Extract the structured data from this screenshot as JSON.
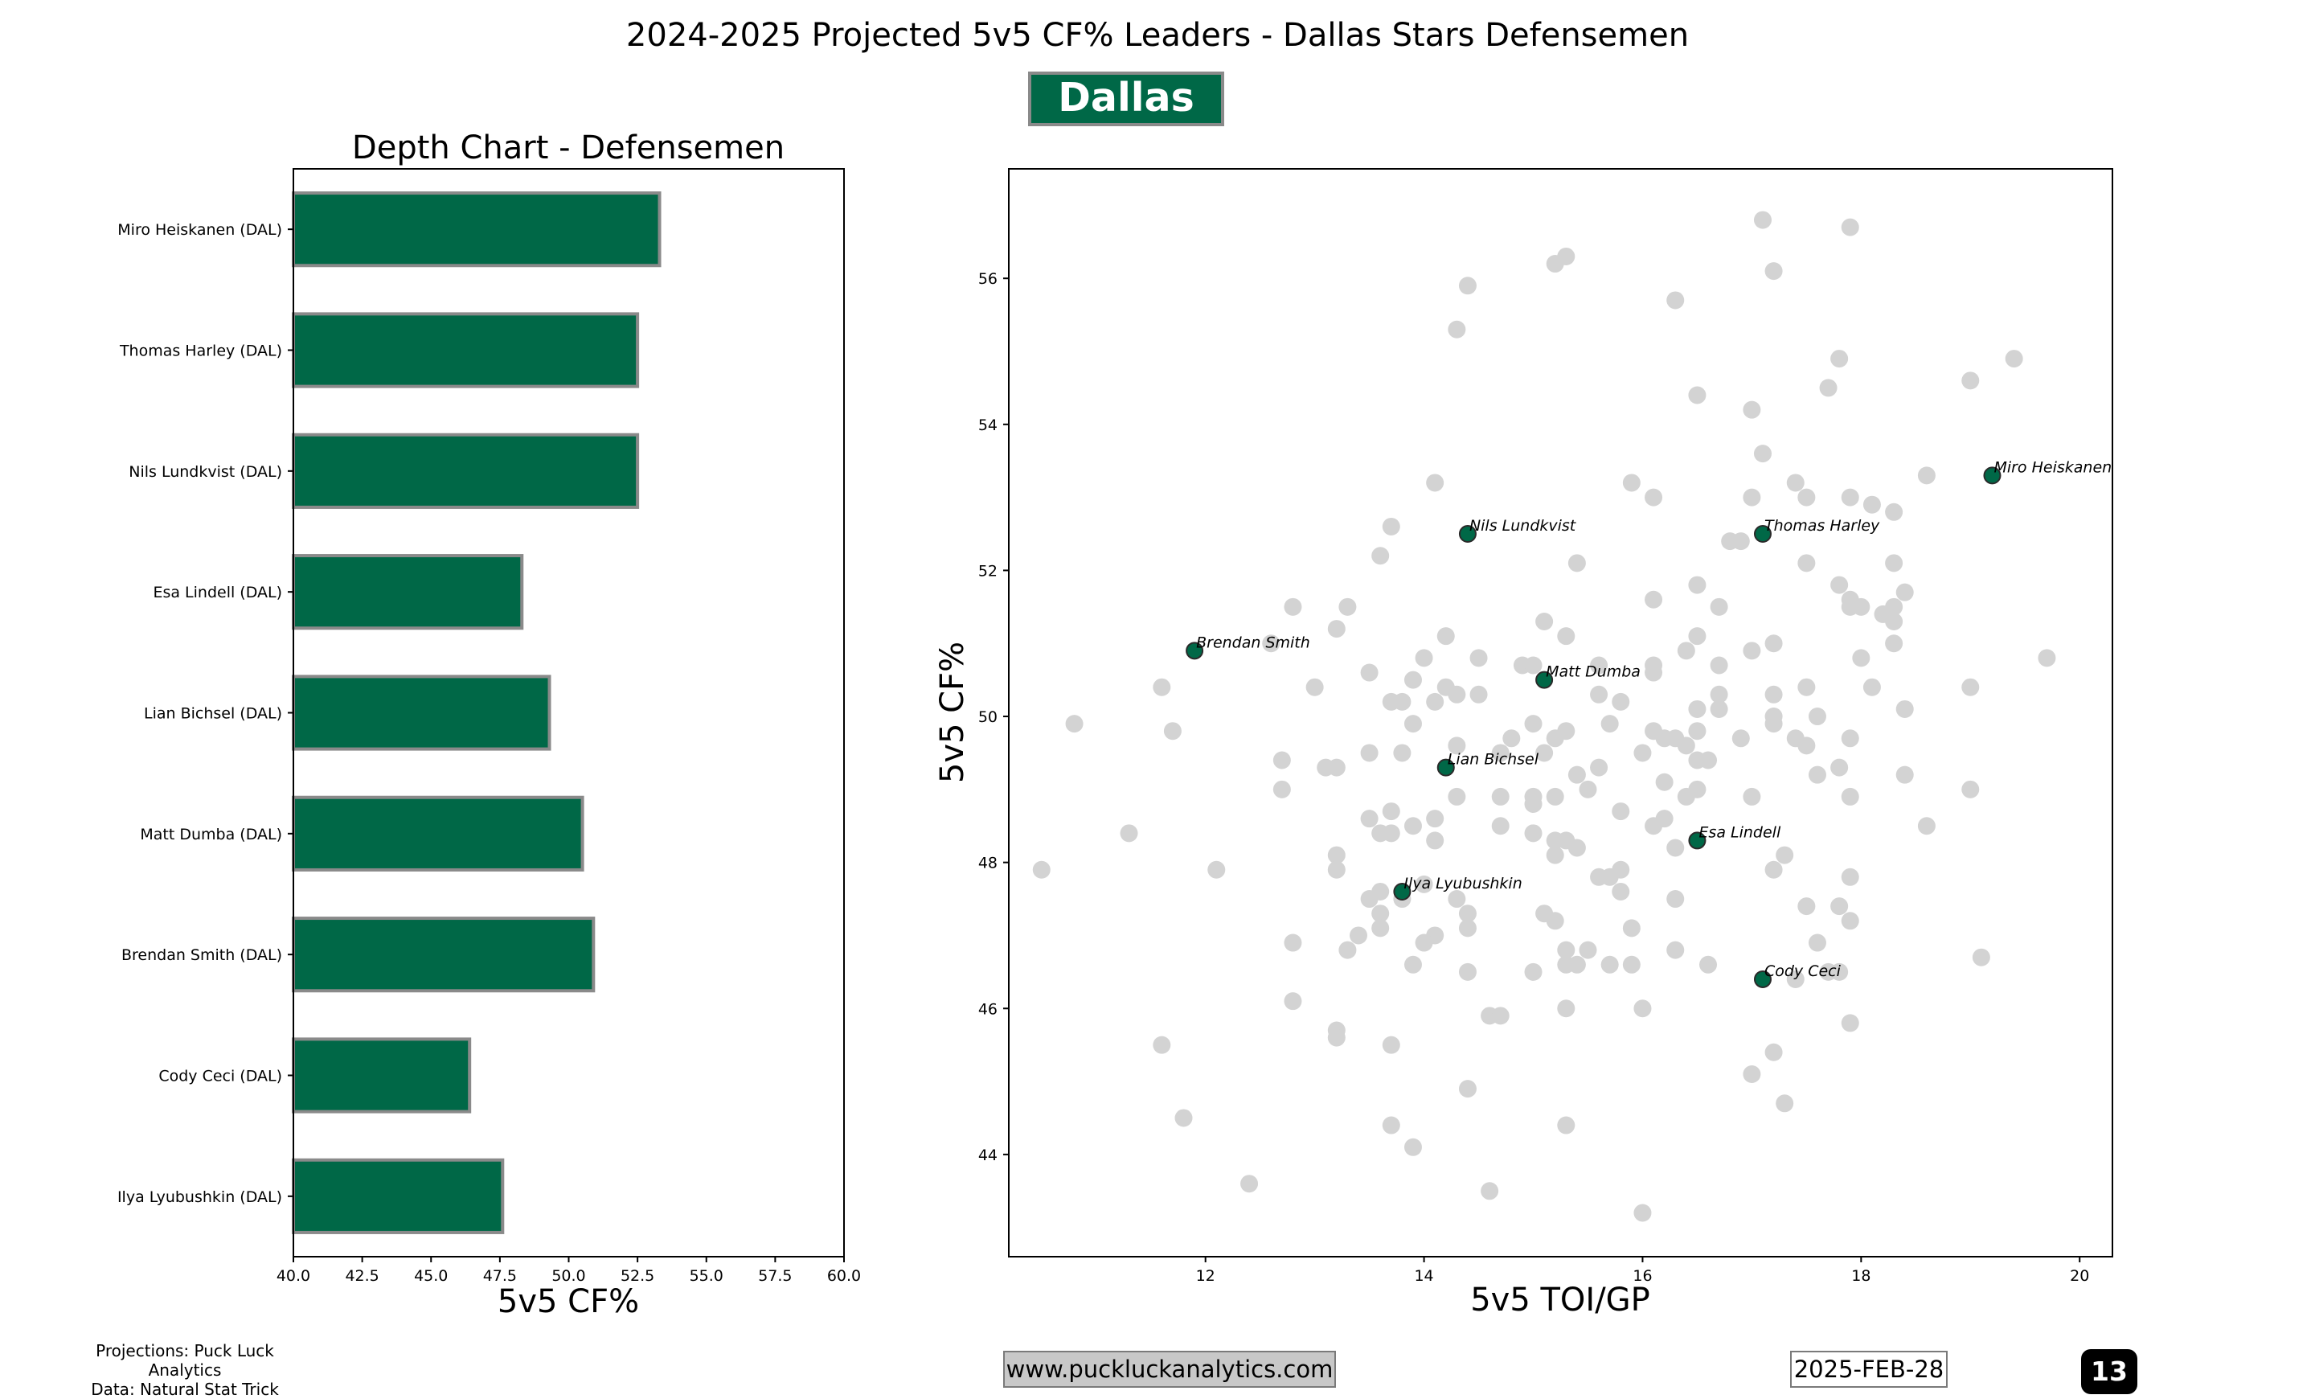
{
  "header": {
    "title": "2024-2025 Projected 5v5 CF% Leaders - Dallas Stars Defensemen",
    "team_badge": "Dallas Stars"
  },
  "footer": {
    "credit_line1": "Projections: Puck Luck Analytics",
    "credit_line2": "Data: Natural Stat Trick",
    "url": "www.puckluckanalytics.com",
    "date": "2025-FEB-28",
    "page_number": "13"
  },
  "colors": {
    "team_green": "#006847",
    "bar_edge": "#8a8a8a",
    "league_points": "#d3d3d3"
  },
  "chart_data": [
    {
      "type": "bar",
      "orientation": "horizontal",
      "title": "Depth Chart - Defensemen",
      "xlabel": "5v5 CF%",
      "xlim": [
        40.0,
        60.0
      ],
      "xticks": [
        "40.0",
        "42.5",
        "45.0",
        "47.5",
        "50.0",
        "52.5",
        "55.0",
        "57.5",
        "60.0"
      ],
      "categories": [
        "Miro Heiskanen (DAL)",
        "Thomas Harley (DAL)",
        "Nils Lundkvist (DAL)",
        "Esa Lindell (DAL)",
        "Lian Bichsel (DAL)",
        "Matt Dumba (DAL)",
        "Brendan Smith (DAL)",
        "Cody Ceci (DAL)",
        "Ilya Lyubushkin (DAL)"
      ],
      "values": [
        53.3,
        52.5,
        52.5,
        48.3,
        49.3,
        50.5,
        50.9,
        46.4,
        47.6
      ]
    },
    {
      "type": "scatter",
      "xlabel": "5v5 TOI/GP",
      "ylabel": "5v5 CF%",
      "xlim": [
        10.2,
        20.3
      ],
      "ylim": [
        42.6,
        57.5
      ],
      "xticks": [
        "12",
        "14",
        "16",
        "18",
        "20"
      ],
      "yticks": [
        "44",
        "46",
        "48",
        "50",
        "52",
        "54",
        "56"
      ],
      "highlighted": [
        {
          "name": "Miro Heiskanen",
          "x": 19.2,
          "y": 53.3
        },
        {
          "name": "Thomas Harley",
          "x": 17.1,
          "y": 52.5
        },
        {
          "name": "Nils Lundkvist",
          "x": 14.4,
          "y": 52.5
        },
        {
          "name": "Brendan Smith",
          "x": 11.9,
          "y": 50.9
        },
        {
          "name": "Matt Dumba",
          "x": 15.1,
          "y": 50.5
        },
        {
          "name": "Lian Bichsel",
          "x": 14.2,
          "y": 49.3
        },
        {
          "name": "Esa Lindell",
          "x": 16.5,
          "y": 48.3
        },
        {
          "name": "Ilya Lyubushkin",
          "x": 13.8,
          "y": 47.6
        },
        {
          "name": "Cody Ceci",
          "x": 17.1,
          "y": 46.4
        }
      ],
      "league_points": [
        [
          17.1,
          56.8
        ],
        [
          17.9,
          56.7
        ],
        [
          15.3,
          56.3
        ],
        [
          15.2,
          56.2
        ],
        [
          17.2,
          56.1
        ],
        [
          14.4,
          55.9
        ],
        [
          16.3,
          55.7
        ],
        [
          14.3,
          55.3
        ],
        [
          19.4,
          54.9
        ],
        [
          17.8,
          54.9
        ],
        [
          19.0,
          54.6
        ],
        [
          17.7,
          54.5
        ],
        [
          16.5,
          54.4
        ],
        [
          17.0,
          54.2
        ],
        [
          17.1,
          53.6
        ],
        [
          18.6,
          53.3
        ],
        [
          14.1,
          53.2
        ],
        [
          15.9,
          53.2
        ],
        [
          17.4,
          53.2
        ],
        [
          17.0,
          53.0
        ],
        [
          17.5,
          53.0
        ],
        [
          17.9,
          53.0
        ],
        [
          16.1,
          53.0
        ],
        [
          18.1,
          52.9
        ],
        [
          18.3,
          52.8
        ],
        [
          13.7,
          52.6
        ],
        [
          16.8,
          52.4
        ],
        [
          16.9,
          52.4
        ],
        [
          15.4,
          52.1
        ],
        [
          13.6,
          52.2
        ],
        [
          17.5,
          52.1
        ],
        [
          18.3,
          52.1
        ],
        [
          16.5,
          51.8
        ],
        [
          17.8,
          51.8
        ],
        [
          18.4,
          51.7
        ],
        [
          17.9,
          51.6
        ],
        [
          16.1,
          51.6
        ],
        [
          12.8,
          51.5
        ],
        [
          13.3,
          51.5
        ],
        [
          16.7,
          51.5
        ],
        [
          17.9,
          51.5
        ],
        [
          18.0,
          51.5
        ],
        [
          18.3,
          51.5
        ],
        [
          18.2,
          51.4
        ],
        [
          18.3,
          51.3
        ],
        [
          15.1,
          51.3
        ],
        [
          13.2,
          51.2
        ],
        [
          14.2,
          51.1
        ],
        [
          15.3,
          51.1
        ],
        [
          16.5,
          51.1
        ],
        [
          17.2,
          51.0
        ],
        [
          18.3,
          51.0
        ],
        [
          17.0,
          50.9
        ],
        [
          12.6,
          51.0
        ],
        [
          16.4,
          50.9
        ],
        [
          18.0,
          50.8
        ],
        [
          19.7,
          50.8
        ],
        [
          14.0,
          50.8
        ],
        [
          14.5,
          50.8
        ],
        [
          16.1,
          50.7
        ],
        [
          14.9,
          50.7
        ],
        [
          15.0,
          50.7
        ],
        [
          15.6,
          50.7
        ],
        [
          16.1,
          50.6
        ],
        [
          16.7,
          50.7
        ],
        [
          13.5,
          50.6
        ],
        [
          13.9,
          50.5
        ],
        [
          14.2,
          50.4
        ],
        [
          11.6,
          50.4
        ],
        [
          13.0,
          50.4
        ],
        [
          17.5,
          50.4
        ],
        [
          18.1,
          50.4
        ],
        [
          19.0,
          50.4
        ],
        [
          14.5,
          50.3
        ],
        [
          14.3,
          50.3
        ],
        [
          15.6,
          50.3
        ],
        [
          16.7,
          50.3
        ],
        [
          17.2,
          50.3
        ],
        [
          13.7,
          50.2
        ],
        [
          14.1,
          50.2
        ],
        [
          13.8,
          50.2
        ],
        [
          15.8,
          50.2
        ],
        [
          16.5,
          50.1
        ],
        [
          18.4,
          50.1
        ],
        [
          16.7,
          50.1
        ],
        [
          17.2,
          50.0
        ],
        [
          17.6,
          50.0
        ],
        [
          10.8,
          49.9
        ],
        [
          13.9,
          49.9
        ],
        [
          15.0,
          49.9
        ],
        [
          15.7,
          49.9
        ],
        [
          17.2,
          49.9
        ],
        [
          16.1,
          49.8
        ],
        [
          16.5,
          49.8
        ],
        [
          16.9,
          49.7
        ],
        [
          15.3,
          49.8
        ],
        [
          11.7,
          49.8
        ],
        [
          16.2,
          49.7
        ],
        [
          16.3,
          49.7
        ],
        [
          17.4,
          49.7
        ],
        [
          17.9,
          49.7
        ],
        [
          14.8,
          49.7
        ],
        [
          15.2,
          49.7
        ],
        [
          14.3,
          49.6
        ],
        [
          17.5,
          49.6
        ],
        [
          16.4,
          49.6
        ],
        [
          14.7,
          49.5
        ],
        [
          16.0,
          49.5
        ],
        [
          13.8,
          49.5
        ],
        [
          13.5,
          49.5
        ],
        [
          15.1,
          49.5
        ],
        [
          16.5,
          49.4
        ],
        [
          12.7,
          49.4
        ],
        [
          13.1,
          49.3
        ],
        [
          15.6,
          49.3
        ],
        [
          17.8,
          49.3
        ],
        [
          16.6,
          49.4
        ],
        [
          13.2,
          49.3
        ],
        [
          15.4,
          49.2
        ],
        [
          17.6,
          49.2
        ],
        [
          18.4,
          49.2
        ],
        [
          16.2,
          49.1
        ],
        [
          12.7,
          49.0
        ],
        [
          15.5,
          49.0
        ],
        [
          16.5,
          49.0
        ],
        [
          19.0,
          49.0
        ],
        [
          14.3,
          48.9
        ],
        [
          17.9,
          48.9
        ],
        [
          15.2,
          48.9
        ],
        [
          14.7,
          48.9
        ],
        [
          15.0,
          48.8
        ],
        [
          16.4,
          48.9
        ],
        [
          15.0,
          48.9
        ],
        [
          17.0,
          48.9
        ],
        [
          13.7,
          48.7
        ],
        [
          13.5,
          48.6
        ],
        [
          15.8,
          48.7
        ],
        [
          16.2,
          48.6
        ],
        [
          14.1,
          48.6
        ],
        [
          13.9,
          48.5
        ],
        [
          13.7,
          48.4
        ],
        [
          14.7,
          48.5
        ],
        [
          16.1,
          48.5
        ],
        [
          15.0,
          48.4
        ],
        [
          13.6,
          48.4
        ],
        [
          15.3,
          48.3
        ],
        [
          14.1,
          48.3
        ],
        [
          15.2,
          48.3
        ],
        [
          16.3,
          48.2
        ],
        [
          15.4,
          48.2
        ],
        [
          15.2,
          48.1
        ],
        [
          13.2,
          48.1
        ],
        [
          17.3,
          48.1
        ],
        [
          18.6,
          48.5
        ],
        [
          11.3,
          48.4
        ],
        [
          10.5,
          47.9
        ],
        [
          12.1,
          47.9
        ],
        [
          13.2,
          47.9
        ],
        [
          15.8,
          47.9
        ],
        [
          17.2,
          47.9
        ],
        [
          15.6,
          47.8
        ],
        [
          15.7,
          47.8
        ],
        [
          17.9,
          47.8
        ],
        [
          14.0,
          47.7
        ],
        [
          14.3,
          47.5
        ],
        [
          13.6,
          47.6
        ],
        [
          13.5,
          47.5
        ],
        [
          15.8,
          47.6
        ],
        [
          16.3,
          47.5
        ],
        [
          17.5,
          47.4
        ],
        [
          17.8,
          47.4
        ],
        [
          13.8,
          47.5
        ],
        [
          14.4,
          47.3
        ],
        [
          15.1,
          47.3
        ],
        [
          13.6,
          47.3
        ],
        [
          15.2,
          47.2
        ],
        [
          13.6,
          47.1
        ],
        [
          15.9,
          47.1
        ],
        [
          14.4,
          47.1
        ],
        [
          17.9,
          47.2
        ],
        [
          14.1,
          47.0
        ],
        [
          13.4,
          47.0
        ],
        [
          12.8,
          46.9
        ],
        [
          14.0,
          46.9
        ],
        [
          17.6,
          46.9
        ],
        [
          15.5,
          46.8
        ],
        [
          13.3,
          46.8
        ],
        [
          15.3,
          46.8
        ],
        [
          16.3,
          46.8
        ],
        [
          19.1,
          46.7
        ],
        [
          13.9,
          46.6
        ],
        [
          15.3,
          46.6
        ],
        [
          15.7,
          46.6
        ],
        [
          15.9,
          46.6
        ],
        [
          15.4,
          46.6
        ],
        [
          16.6,
          46.6
        ],
        [
          15.0,
          46.5
        ],
        [
          14.4,
          46.5
        ],
        [
          17.4,
          46.4
        ],
        [
          17.8,
          46.5
        ],
        [
          17.7,
          46.5
        ],
        [
          12.8,
          46.1
        ],
        [
          16.0,
          46.0
        ],
        [
          15.3,
          46.0
        ],
        [
          14.6,
          45.9
        ],
        [
          14.7,
          45.9
        ],
        [
          13.2,
          45.7
        ],
        [
          17.9,
          45.8
        ],
        [
          13.2,
          45.6
        ],
        [
          11.6,
          45.5
        ],
        [
          13.7,
          45.5
        ],
        [
          17.2,
          45.4
        ],
        [
          17.0,
          45.1
        ],
        [
          14.4,
          44.9
        ],
        [
          17.3,
          44.7
        ],
        [
          11.8,
          44.5
        ],
        [
          15.3,
          44.4
        ],
        [
          13.7,
          44.4
        ],
        [
          13.9,
          44.1
        ],
        [
          12.4,
          43.6
        ],
        [
          14.6,
          43.5
        ],
        [
          16.0,
          43.2
        ]
      ]
    }
  ]
}
